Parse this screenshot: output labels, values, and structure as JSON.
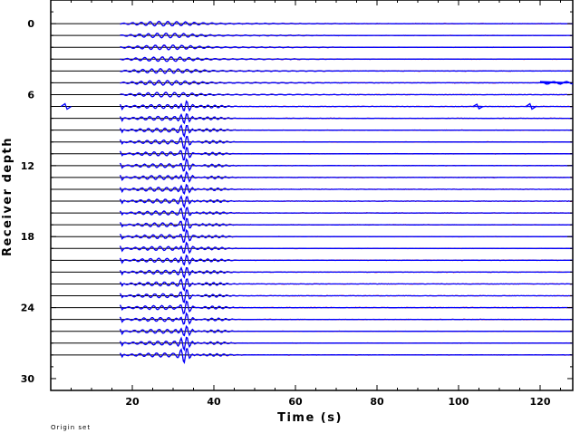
{
  "chart_data": {
    "type": "line",
    "title": "",
    "xlabel": "Time (s)",
    "ylabel": "Receiver depth",
    "xlim": [
      0,
      128
    ],
    "ylim": [
      31,
      -2
    ],
    "x_ticks": [
      20,
      40,
      60,
      80,
      100,
      120
    ],
    "y_ticks": [
      0,
      6,
      12,
      18,
      24,
      30
    ],
    "y_reversed": true,
    "grid": false,
    "legend": "none",
    "footnote": "Origin set",
    "trace_depths": [
      0,
      1,
      2,
      3,
      4,
      5,
      6,
      7,
      8,
      9,
      10,
      11,
      12,
      13,
      14,
      15,
      16,
      17,
      18,
      19,
      20,
      21,
      22,
      23,
      24,
      25,
      26,
      27,
      28
    ],
    "trace_start_s": 17,
    "direct_arrival_s": 33,
    "series": [
      {
        "name": "",
        "color": "#0000ff"
      },
      {
        "name": "",
        "color": "#ff0000"
      }
    ],
    "baseline_color": "#000000"
  }
}
